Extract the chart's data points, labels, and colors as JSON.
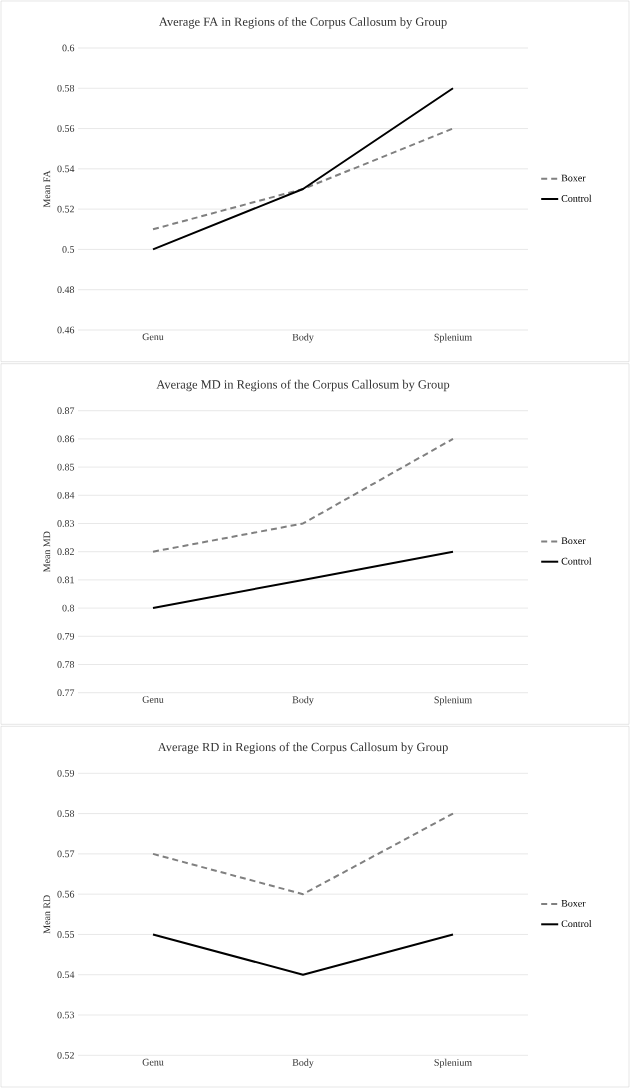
{
  "chart_data": [
    {
      "type": "line",
      "title": "Average FA in Regions of the Corpus Callosum by Group",
      "ylabel": "Mean FA",
      "categories": [
        "Genu",
        "Body",
        "Splenium"
      ],
      "series": [
        {
          "name": "Boxer",
          "color": "#808080",
          "line_style": "dashed",
          "values": [
            0.51,
            0.53,
            0.56
          ]
        },
        {
          "name": "Control",
          "color": "#000000",
          "line_style": "solid",
          "values": [
            0.5,
            0.53,
            0.58
          ]
        }
      ],
      "ylim": [
        0.46,
        0.6
      ],
      "yticks": [
        0.46,
        0.48,
        0.5,
        0.52,
        0.54,
        0.56,
        0.58,
        0.6
      ],
      "grid": "y",
      "legend": "right"
    },
    {
      "type": "line",
      "title": "Average MD in Regions of the Corpus Callosum by Group",
      "ylabel": "Mean MD",
      "categories": [
        "Genu",
        "Body",
        "Splenium"
      ],
      "series": [
        {
          "name": "Boxer",
          "color": "#808080",
          "line_style": "dashed",
          "values": [
            0.82,
            0.83,
            0.86
          ]
        },
        {
          "name": "Control",
          "color": "#000000",
          "line_style": "solid",
          "values": [
            0.8,
            0.81,
            0.82
          ]
        }
      ],
      "ylim": [
        0.77,
        0.87
      ],
      "yticks": [
        0.77,
        0.78,
        0.79,
        0.8,
        0.81,
        0.82,
        0.83,
        0.84,
        0.85,
        0.86,
        0.87
      ],
      "grid": "y",
      "legend": "right"
    },
    {
      "type": "line",
      "title": "Average RD in Regions of the Corpus Callosum by Group",
      "ylabel": "Mean RD",
      "categories": [
        "Genu",
        "Body",
        "Splenium"
      ],
      "series": [
        {
          "name": "Boxer",
          "color": "#808080",
          "line_style": "dashed",
          "values": [
            0.57,
            0.56,
            0.58
          ]
        },
        {
          "name": "Control",
          "color": "#000000",
          "line_style": "solid",
          "values": [
            0.55,
            0.54,
            0.55
          ]
        }
      ],
      "ylim": [
        0.52,
        0.59
      ],
      "yticks": [
        0.52,
        0.53,
        0.54,
        0.55,
        0.56,
        0.57,
        0.58,
        0.59
      ],
      "grid": "y",
      "legend": "right"
    }
  ]
}
